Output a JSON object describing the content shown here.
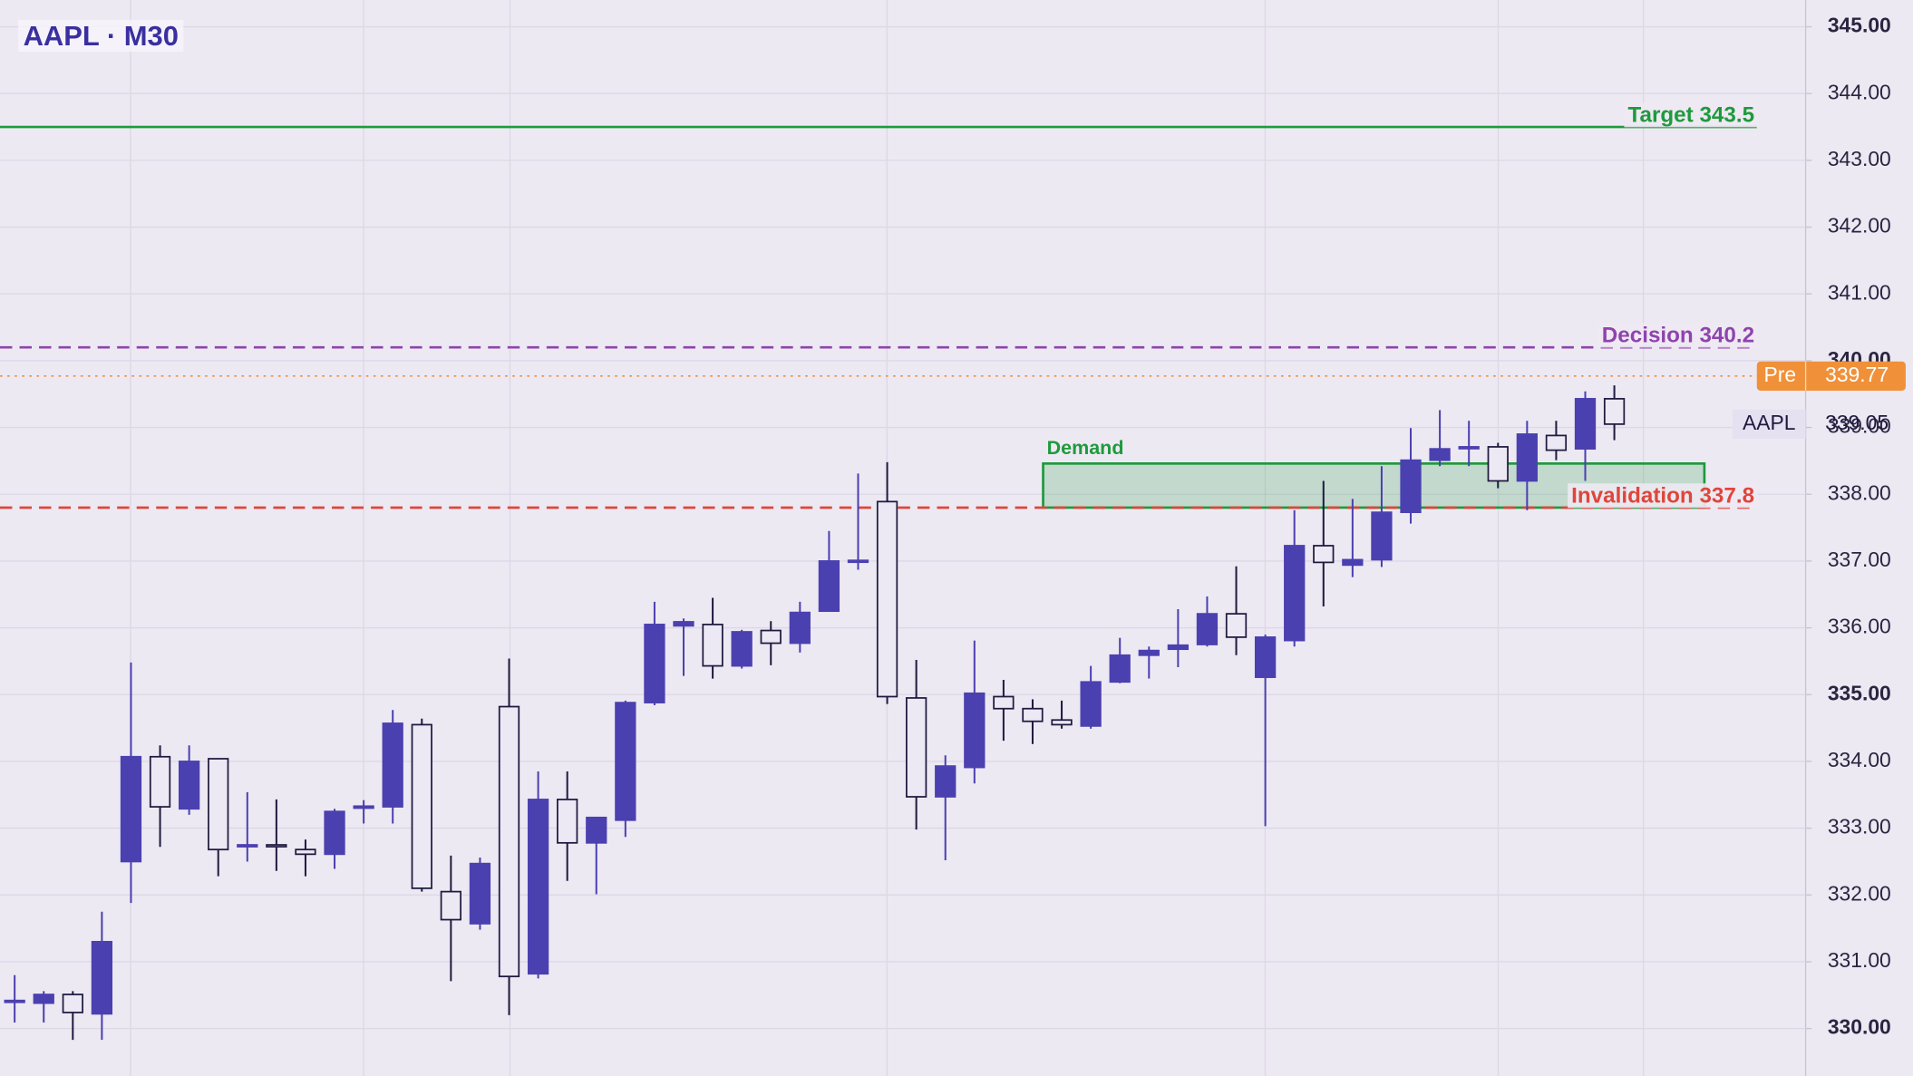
{
  "chart_data": {
    "type": "candlestick",
    "title": "AAPL · M30",
    "ylim": [
      329.29,
      345.4
    ],
    "yticks": [
      {
        "value": 330,
        "label": "330.00"
      },
      {
        "value": 331,
        "label": "331.00"
      },
      {
        "value": 332,
        "label": "332.00"
      },
      {
        "value": 333,
        "label": "333.00"
      },
      {
        "value": 334,
        "label": "334.00"
      },
      {
        "value": 335,
        "label": "335.00"
      },
      {
        "value": 336,
        "label": "336.00"
      },
      {
        "value": 337,
        "label": "337.00"
      },
      {
        "value": 338,
        "label": "338.00"
      },
      {
        "value": 339,
        "label": "339.00"
      },
      {
        "value": 340,
        "label": "340.00"
      },
      {
        "value": 341,
        "label": "341.00"
      },
      {
        "value": 342,
        "label": "342.00"
      },
      {
        "value": 343,
        "label": "343.00"
      },
      {
        "value": 344,
        "label": "344.00"
      },
      {
        "value": 345,
        "label": "345.00"
      }
    ],
    "grid": true,
    "up_color": "#4b40b0",
    "down_color": "#ece8f4",
    "outline_color": "#1f1b3f",
    "open": [
      330.4,
      330.38,
      330.51,
      330.22,
      332.5,
      334.07,
      333.29,
      334.04,
      332.73,
      332.75,
      332.68,
      332.61,
      333.3,
      333.32,
      334.55,
      332.05,
      331.57,
      334.82,
      330.82,
      333.43,
      332.78,
      333.12,
      334.88,
      336.03,
      336.05,
      335.43,
      335.96,
      335.77,
      336.25,
      336.99,
      337.89,
      334.95,
      333.47,
      333.91,
      334.97,
      334.79,
      334.62,
      334.53,
      335.19,
      335.59,
      335.68,
      335.75,
      336.21,
      335.26,
      335.81,
      337.23,
      336.94,
      337.02,
      337.73,
      338.51,
      338.7,
      338.71,
      338.2,
      338.88,
      338.68,
      339.43
    ],
    "high": [
      330.8,
      330.56,
      330.56,
      331.75,
      335.48,
      334.24,
      334.24,
      334.04,
      333.54,
      333.43,
      332.83,
      333.29,
      333.42,
      334.77,
      334.64,
      332.59,
      332.56,
      335.54,
      333.85,
      333.85,
      333.16,
      334.91,
      336.39,
      336.14,
      336.45,
      335.97,
      336.1,
      336.39,
      337.45,
      338.31,
      338.48,
      335.52,
      334.09,
      335.81,
      335.22,
      334.93,
      334.91,
      335.43,
      335.85,
      335.72,
      336.28,
      336.47,
      336.92,
      335.9,
      337.76,
      338.2,
      337.93,
      338.42,
      338.99,
      339.26,
      339.1,
      338.77,
      339.1,
      339.1,
      339.54,
      339.63
    ],
    "low": [
      330.09,
      330.09,
      329.83,
      329.83,
      331.88,
      332.72,
      333.2,
      332.28,
      332.5,
      332.36,
      332.28,
      332.39,
      333.07,
      333.07,
      332.05,
      330.71,
      331.48,
      330.2,
      330.75,
      332.21,
      332.01,
      332.87,
      334.84,
      335.28,
      335.24,
      335.39,
      335.44,
      335.63,
      336.25,
      336.87,
      334.86,
      332.98,
      332.52,
      333.67,
      334.31,
      334.26,
      334.49,
      334.49,
      335.17,
      335.24,
      335.41,
      335.72,
      335.59,
      333.03,
      335.72,
      336.32,
      336.76,
      336.91,
      337.56,
      338.42,
      338.42,
      338.09,
      337.76,
      338.51,
      338.2,
      338.81
    ],
    "close": [
      330.42,
      330.51,
      330.24,
      331.3,
      334.07,
      333.32,
      334.0,
      332.68,
      332.75,
      332.73,
      332.61,
      333.25,
      333.33,
      334.57,
      332.1,
      331.63,
      332.47,
      330.78,
      333.43,
      332.78,
      333.16,
      334.88,
      336.05,
      336.09,
      335.43,
      335.94,
      335.77,
      336.23,
      337.0,
      337.01,
      334.97,
      333.47,
      333.93,
      335.02,
      334.79,
      334.6,
      334.55,
      335.19,
      335.59,
      335.66,
      335.74,
      336.21,
      335.86,
      335.86,
      337.23,
      336.98,
      337.02,
      337.73,
      338.51,
      338.68,
      338.71,
      338.2,
      338.9,
      338.66,
      339.43,
      339.05
    ],
    "levels": [
      {
        "label": "Target 343.5",
        "value": 343.5,
        "color": "#1e9a3c",
        "style": "solid"
      },
      {
        "label": "Decision 340.2",
        "value": 340.2,
        "color": "#8e44ad",
        "style": "dashed"
      },
      {
        "label": "Invalidation 337.8",
        "value": 337.8,
        "color": "#e0453a",
        "style": "dashed"
      }
    ],
    "zone": {
      "label": "Demand",
      "low": 337.8,
      "high": 338.46,
      "color": "#1e9a3c"
    },
    "premarket": {
      "tag": "Pre",
      "value": 339.77,
      "color": "#f0913a"
    },
    "last": {
      "tag": "AAPL",
      "value": 339.05
    }
  }
}
